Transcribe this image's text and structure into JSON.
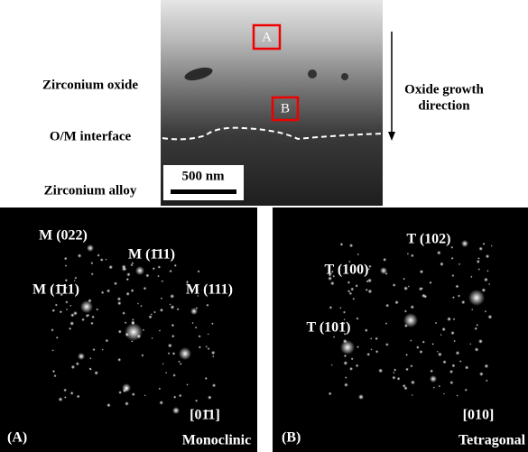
{
  "figure": {
    "left_labels": [
      "Zirconium oxide",
      "O/M interface",
      "Zirconium alloy"
    ],
    "boxes": [
      "A",
      "B"
    ],
    "scale_bar": "500 nm",
    "arrow_label": [
      "Oxide growth",
      "direction"
    ],
    "panels": [
      {
        "label": "(A)",
        "zone_axis": "[01̄1]",
        "phase": "Monoclinic",
        "spots": [
          "M (022)",
          "M (1̄11)",
          "M (1̄11)",
          "M (111)"
        ]
      },
      {
        "label": "(B)",
        "zone_axis": "[010]",
        "phase": "Tetragonal",
        "spots": [
          "T (102)",
          "T (100)",
          "T (101)"
        ]
      }
    ]
  }
}
